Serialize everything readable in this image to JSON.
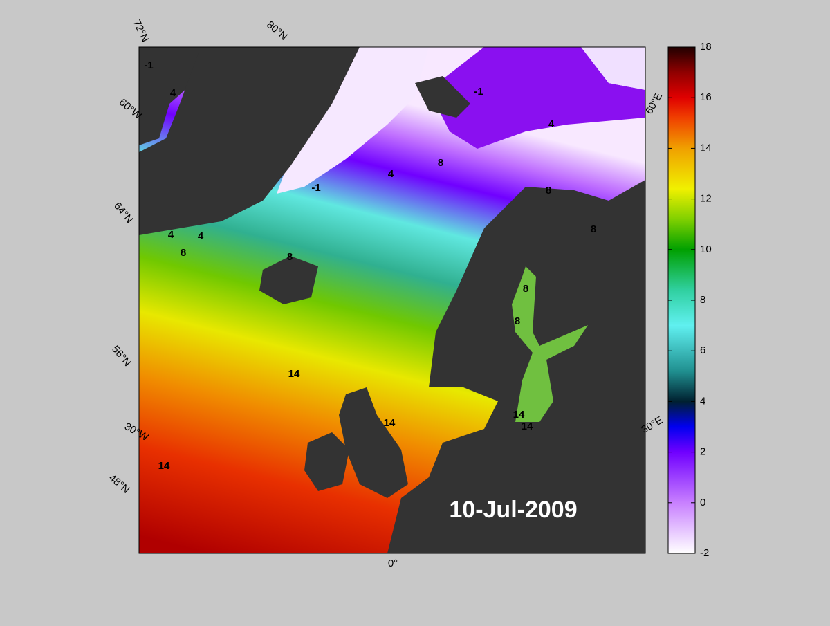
{
  "map": {
    "date": "10-Jul-2009",
    "grid_labels": [
      "72°N",
      "80°N",
      "60°W",
      "64°N",
      "56°N",
      "30°W",
      "48°N",
      "0°",
      "30°E",
      "60°E"
    ],
    "contour_labels": [
      "-1",
      "-1",
      "-1",
      "4",
      "4",
      "4",
      "4",
      "4",
      "8",
      "8",
      "8",
      "8",
      "8",
      "8",
      "8",
      "14",
      "14",
      "14",
      "14",
      "14"
    ]
  },
  "colorbar": {
    "lim": [
      -2,
      18
    ],
    "ticks": [
      -2,
      0,
      2,
      4,
      6,
      8,
      10,
      12,
      14,
      16,
      18
    ]
  }
}
